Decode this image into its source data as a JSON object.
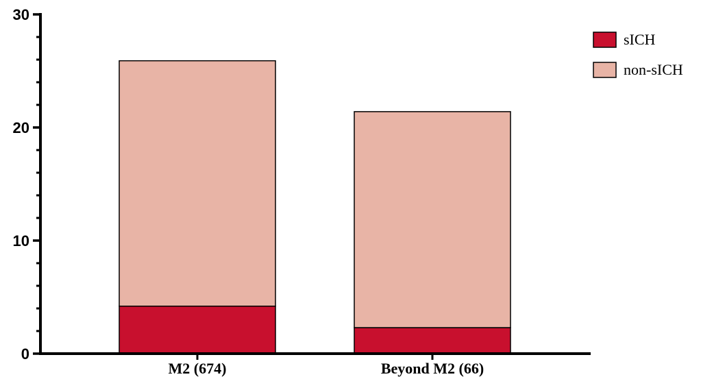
{
  "chart_data": {
    "type": "bar",
    "stacked": true,
    "categories": [
      "M2 (674)",
      "Beyond M2 (66)"
    ],
    "series": [
      {
        "name": "sICH",
        "values": [
          4.2,
          2.3
        ],
        "color": "#C8102E"
      },
      {
        "name": "non-sICH",
        "values": [
          21.7,
          19.1
        ],
        "color": "#E8B4A6"
      }
    ],
    "ylim": [
      0,
      30
    ],
    "yticks": [
      0,
      10,
      20,
      30
    ],
    "minor_tick_step": 2,
    "grid": false,
    "legend_position": "top-right"
  }
}
